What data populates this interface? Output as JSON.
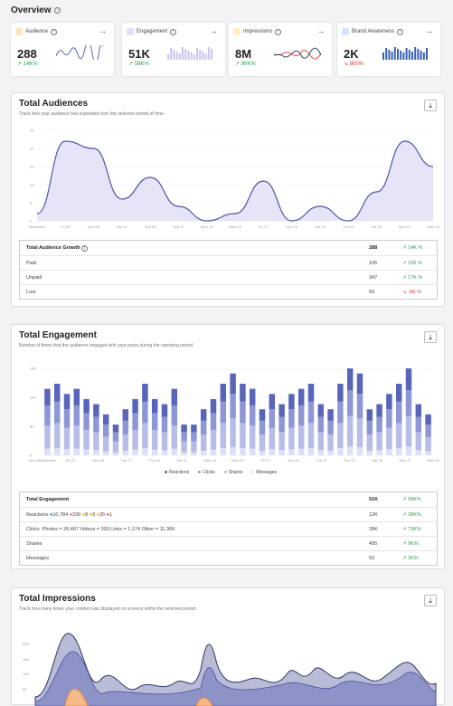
{
  "overview": {
    "title": "Overview"
  },
  "kpis": [
    {
      "label": "Audience",
      "value": "288",
      "change": "14K%",
      "dir": "up",
      "color": "#f5a623"
    },
    {
      "label": "Engagement",
      "value": "51K",
      "change": "58K%",
      "dir": "up",
      "color": "#8c7ae6"
    },
    {
      "label": "Impressions",
      "value": "8M",
      "change": "90K%",
      "dir": "up",
      "color": "#f1c40f"
    },
    {
      "label": "Brand Awareness",
      "value": "2K",
      "change": "800%",
      "dir": "down",
      "color": "#3b6fd6"
    }
  ],
  "audiences": {
    "title": "Total Audiences",
    "subtitle": "Track how your audience has expended over the selected period of time.",
    "yticks": [
      "25",
      "20",
      "15",
      "10",
      "5",
      "0"
    ],
    "xticks": [
      "November",
      "Fri 03",
      "Nov 08",
      "Tue 27",
      "Thu 09",
      "Sat 11",
      "Mon 13",
      "Wed 15",
      "Fri 17",
      "Nov 19",
      "Tue 21",
      "Thu 23",
      "Sat 25",
      "Mon 27",
      "Wed 29"
    ],
    "table": {
      "header": {
        "label": "Total Audience Growth",
        "value": "288",
        "change": "14K %"
      },
      "rows": [
        {
          "label": "Paid",
          "value": "105",
          "change": "105 %",
          "dir": "up"
        },
        {
          "label": "Unpaid",
          "value": "347",
          "change": "17K %",
          "dir": "up"
        },
        {
          "label": "Lost",
          "value": "59",
          "change": "-6K %",
          "dir": "down"
        }
      ]
    }
  },
  "engagement": {
    "title": "Total Engagement",
    "subtitle": "Number of times that the audience engaged with your posts during the reporting period.",
    "yticks": [
      "15K",
      "10K",
      "5K",
      "0"
    ],
    "xticks": [
      "Sun 29November",
      "Fri 03",
      "Nov 08",
      "Tue 27",
      "Thu 09",
      "Sat 11",
      "Mon 13",
      "Wed 15",
      "Fri 17",
      "Nov 19",
      "Tue 21",
      "Thu 23",
      "Sat 25",
      "Mon 27",
      "Wed 29"
    ],
    "legend": [
      "Reactions",
      "Clicks",
      "Shares",
      "Messages"
    ],
    "table": {
      "header": {
        "label": "Total Engagement",
        "value": "51K",
        "change": "58K%"
      },
      "reactions": {
        "label": "Reactions",
        "items": [
          "10,784",
          "339",
          "8",
          "9",
          "35",
          "1"
        ],
        "value": "12K",
        "change": "38K%"
      },
      "clicks": {
        "label": "Clicks",
        "detail": "Photos = 26,467   Videos = 209   Links = 1,174   Other = 11,366",
        "value": "39K",
        "change": "73K%"
      },
      "rows": [
        {
          "label": "Shares",
          "value": "495",
          "change": "9K%"
        },
        {
          "label": "Messages",
          "value": "53",
          "change": "3K%"
        }
      ]
    }
  },
  "impressions": {
    "title": "Total Impressions",
    "subtitle": "Track how many times your content was displayed on screens within the selected period.",
    "yticks": [
      "20K",
      "15K",
      "10K",
      "5K"
    ]
  },
  "icons": {
    "download": "download-icon",
    "arrow": "arrow-right-icon",
    "info": "info-icon",
    "trend_up": "trend-up-icon",
    "trend_down": "trend-down-icon"
  },
  "chart_data": [
    {
      "type": "area",
      "title": "Total Audiences",
      "x": [
        "November",
        "Fri 03",
        "Nov 08",
        "Tue 27",
        "Thu 09",
        "Sat 11",
        "Mon 13",
        "Wed 15",
        "Fri 17",
        "Nov 19",
        "Tue 21",
        "Thu 23",
        "Sat 25",
        "Mon 27",
        "Wed 29"
      ],
      "values": [
        2,
        22,
        20,
        6,
        12,
        4,
        0,
        2,
        11,
        0,
        4,
        0,
        8,
        22,
        15
      ],
      "ylim": [
        0,
        25
      ]
    },
    {
      "type": "bar",
      "title": "Total Engagement",
      "stacked": true,
      "series": [
        {
          "name": "Reactions",
          "color": "#5865b8"
        },
        {
          "name": "Clicks",
          "color": "#8e97d6"
        },
        {
          "name": "Shares",
          "color": "#b8bde8"
        },
        {
          "name": "Messages",
          "color": "#dcdff5"
        }
      ],
      "values": [
        13,
        14,
        12,
        13,
        11,
        10,
        8,
        6,
        9,
        11,
        14,
        11,
        10,
        13,
        6,
        6,
        9,
        11,
        14,
        16,
        14,
        13,
        9,
        12,
        10,
        12,
        13,
        14,
        10,
        9,
        14,
        17,
        16,
        9,
        10,
        12,
        14,
        17,
        10,
        8
      ],
      "ylim": [
        0,
        17
      ]
    }
  ]
}
